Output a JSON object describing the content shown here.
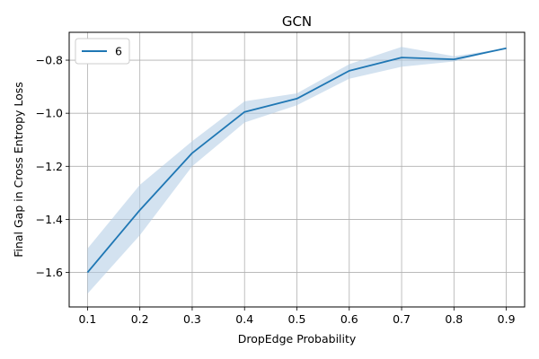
{
  "chart_data": {
    "type": "line",
    "title": "GCN",
    "xlabel": "DropEdge Probability",
    "ylabel": "Final Gap in Cross Entropy Loss",
    "x": [
      0.1,
      0.2,
      0.3,
      0.4,
      0.5,
      0.6,
      0.7,
      0.8,
      0.9
    ],
    "xlim": [
      0.065,
      0.935
    ],
    "ylim": [
      -1.73,
      -0.695
    ],
    "x_ticks": [
      0.1,
      0.2,
      0.3,
      0.4,
      0.5,
      0.6,
      0.7,
      0.8,
      0.9
    ],
    "x_tick_labels": [
      "0.1",
      "0.2",
      "0.3",
      "0.4",
      "0.5",
      "0.6",
      "0.7",
      "0.8",
      "0.9"
    ],
    "y_ticks": [
      -1.6,
      -1.4,
      -1.2,
      -1.0,
      -0.8
    ],
    "y_tick_labels": [
      "−1.6",
      "−1.4",
      "−1.2",
      "−1.0",
      "−0.8"
    ],
    "grid": true,
    "legend_position": "top-left",
    "series": [
      {
        "name": "6",
        "color": "#1f77b4",
        "band_color": "#aecbe4",
        "values": [
          -1.6,
          -1.365,
          -1.15,
          -0.995,
          -0.945,
          -0.84,
          -0.79,
          -0.797,
          -0.755
        ],
        "lower": [
          -1.68,
          -1.46,
          -1.2,
          -1.035,
          -0.97,
          -0.87,
          -0.825,
          -0.805,
          -0.755
        ],
        "upper": [
          -1.51,
          -1.27,
          -1.105,
          -0.955,
          -0.925,
          -0.815,
          -0.75,
          -0.785,
          -0.755
        ]
      }
    ]
  }
}
